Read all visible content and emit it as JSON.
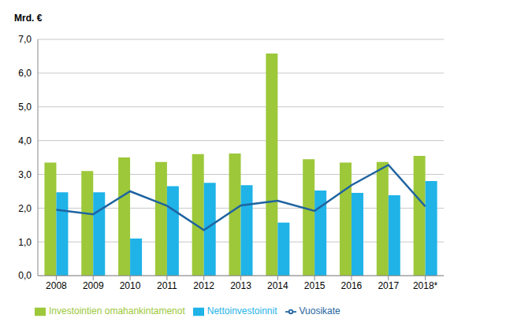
{
  "chart_data": {
    "type": "bar",
    "ylabel": "Mrd. €",
    "categories": [
      "2008",
      "2009",
      "2010",
      "2011",
      "2012",
      "2013",
      "2014",
      "2015",
      "2016",
      "2017",
      "2018*"
    ],
    "series": [
      {
        "name": "Investointien omahankintamenot",
        "type": "bar",
        "color": "#9dc83a",
        "values": [
          3.35,
          3.1,
          3.5,
          3.37,
          3.6,
          3.62,
          6.58,
          3.45,
          3.35,
          3.37,
          3.55
        ]
      },
      {
        "name": "Nettoinvestoinnit",
        "type": "bar",
        "color": "#1fb3e8",
        "values": [
          2.47,
          2.47,
          1.1,
          2.65,
          2.75,
          2.68,
          1.57,
          2.52,
          2.45,
          2.38,
          2.8
        ]
      },
      {
        "name": "Vuosikate",
        "type": "line",
        "color": "#1f64a0",
        "marker": "none",
        "values": [
          1.95,
          1.82,
          2.5,
          2.07,
          1.35,
          2.08,
          2.22,
          1.92,
          2.68,
          3.28,
          2.05
        ]
      }
    ],
    "ylim": [
      0,
      7
    ],
    "yticks": [
      {
        "value": 0,
        "label": "0,0"
      },
      {
        "value": 1,
        "label": "1,0"
      },
      {
        "value": 2,
        "label": "2,0"
      },
      {
        "value": 3,
        "label": "3,0"
      },
      {
        "value": 4,
        "label": "4,0"
      },
      {
        "value": 5,
        "label": "5,0"
      },
      {
        "value": 6,
        "label": "6,0"
      },
      {
        "value": 7,
        "label": "7,0"
      }
    ],
    "grid": true,
    "legend": "bottom"
  }
}
